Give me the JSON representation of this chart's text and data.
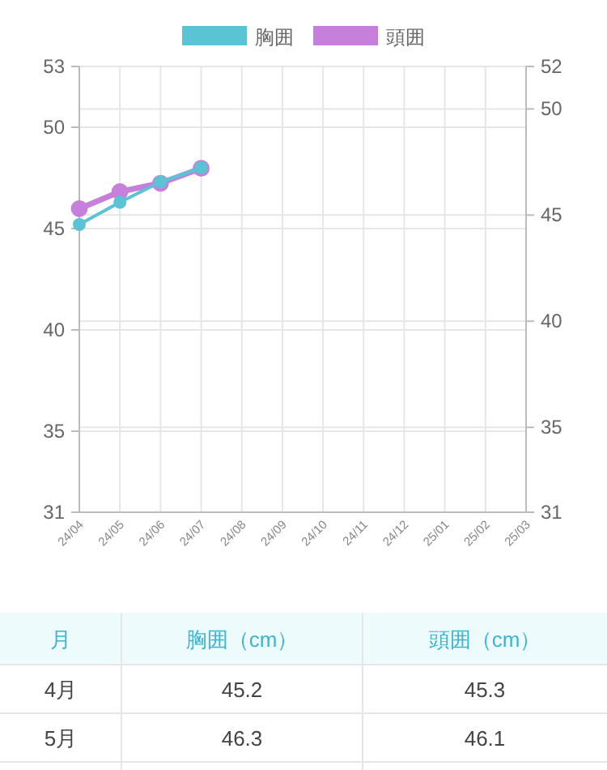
{
  "chart_data": {
    "type": "line",
    "categories": [
      "24/04",
      "24/05",
      "24/06",
      "24/07",
      "24/08",
      "24/09",
      "24/10",
      "24/11",
      "24/12",
      "25/01",
      "25/02",
      "25/03"
    ],
    "series": [
      {
        "name": "胸囲",
        "color": "#5bc4d4",
        "values": [
          45.2,
          46.3,
          47.3,
          48.0,
          null,
          null,
          null,
          null,
          null,
          null,
          null,
          null
        ]
      },
      {
        "name": "頭囲",
        "color": "#c77fdc",
        "axis": "y2",
        "values": [
          45.3,
          46.1,
          46.5,
          47.2,
          null,
          null,
          null,
          null,
          null,
          null,
          null,
          null
        ]
      }
    ],
    "ylim": [
      31,
      53
    ],
    "yticks": [
      31,
      35,
      40,
      45,
      50,
      53
    ],
    "y2lim": [
      31,
      52
    ],
    "y2ticks": [
      31,
      35,
      40,
      45,
      50,
      52
    ],
    "grid": true,
    "legend": "top",
    "marker": "circle",
    "line_style": "solid",
    "annotations": [
      "月",
      "胸囲（cm）",
      "頭囲（cm）",
      "4月",
      "45.2",
      "45.3",
      "5月",
      "46.3",
      "46.1"
    ]
  }
}
